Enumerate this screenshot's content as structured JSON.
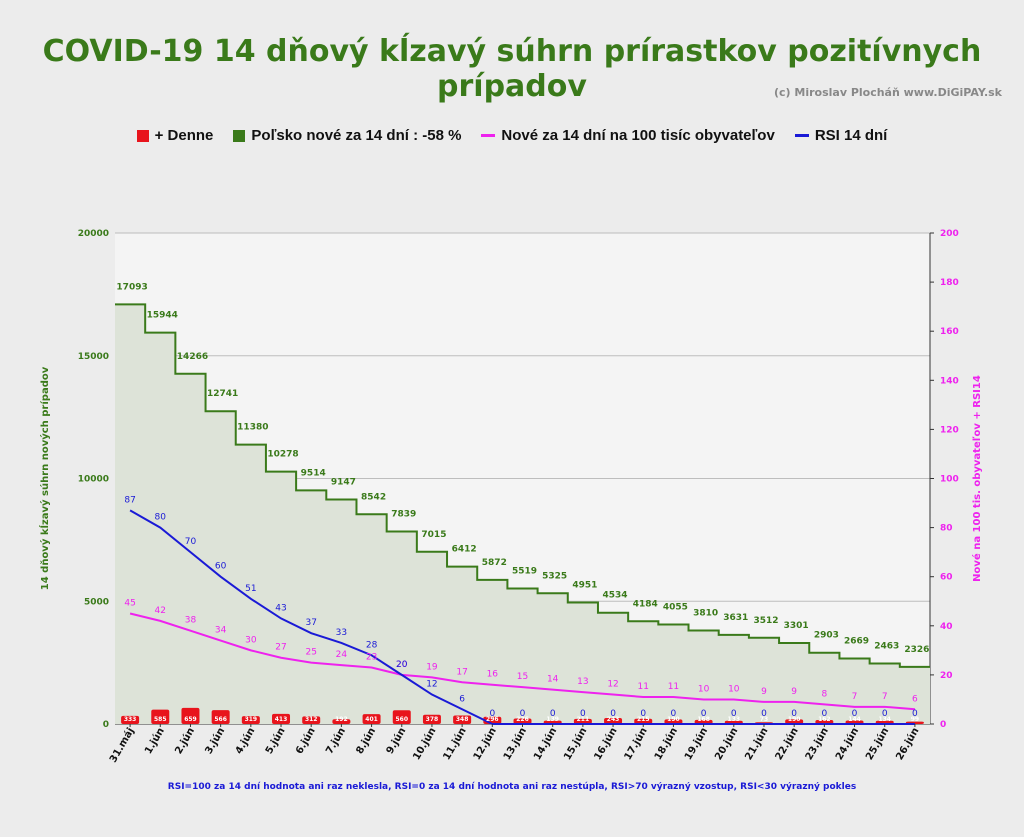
{
  "header": {
    "title": "COVID-19 14 dňový kĺzavý súhrn prírastkov pozitívnych prípadov",
    "credit": "(c) Miroslav Plocháň  www.DiGiPAY.sk"
  },
  "legend": [
    {
      "label": "+ Denne",
      "color": "#e8141c",
      "kind": "box"
    },
    {
      "label": "Poľsko nové za 14 dní : -58 %",
      "color": "#3a7a1a",
      "kind": "box"
    },
    {
      "label": "Nové za 14 dní na 100 tisíc obyvateľov",
      "color": "#ee22ee",
      "kind": "line"
    },
    {
      "label": "RSI 14 dní",
      "color": "#1a1ad6",
      "kind": "line"
    }
  ],
  "footnote": "RSI=100 za 14 dní hodnota ani raz neklesla, RSI=0 za 14 dní hodnota ani raz nestúpla, RSI>70 výrazný  vzostup, RSI<30 výrazný pokles",
  "chart_data": {
    "type": "bar",
    "categories": [
      "31.máj",
      "1.jún",
      "2.jún",
      "3.jún",
      "4.jún",
      "5.jún",
      "6.jún",
      "7.jún",
      "8.jún",
      "9.jún",
      "10.jún",
      "11.jún",
      "12.jún",
      "13.jún",
      "14.jún",
      "15.jún",
      "16.jún",
      "17.jún",
      "18.jún",
      "19.jún",
      "20.jún",
      "21.jún",
      "22.jún",
      "23.jún",
      "24.jún",
      "25.jún",
      "26.jún"
    ],
    "ylabel": "14 dňový kĺzavý  súhrn nových prípadov",
    "y2label": "Nové na 100 tis. obyvateľov + RSI14",
    "ylim": [
      0,
      20000
    ],
    "y2lim": [
      0,
      200
    ],
    "yticks": [
      "0",
      "5000",
      "10000",
      "15000",
      "20000"
    ],
    "y2ticks": [
      "0",
      "20",
      "40",
      "60",
      "80",
      "100",
      "120",
      "140",
      "160",
      "180",
      "200"
    ],
    "grid": true,
    "series": [
      {
        "name": "+ Denne",
        "axis": "left",
        "kind": "bar",
        "color": "#e8141c",
        "values": [
          333,
          585,
          659,
          566,
          319,
          413,
          312,
          192,
          401,
          560,
          378,
          348,
          296,
          226,
          139,
          211,
          243,
          215,
          190,
          168,
          133,
          73,
          190,
          162,
          144,
          134,
          99
        ]
      },
      {
        "name": "Poľsko nové za 14 dní : -58 %",
        "axis": "left",
        "kind": "step",
        "color": "#3a7a1a",
        "values": [
          17093,
          15944,
          14266,
          12741,
          11380,
          10278,
          9514,
          9147,
          8542,
          7839,
          7015,
          6412,
          5872,
          5519,
          5325,
          4951,
          4534,
          4184,
          4055,
          3810,
          3631,
          3512,
          3301,
          2903,
          2669,
          2463,
          2326
        ]
      },
      {
        "name": "Nové za 14 dní na 100 tisíc obyvateľov",
        "axis": "right",
        "kind": "line",
        "color": "#ee22ee",
        "values": [
          45,
          42,
          38,
          34,
          30,
          27,
          25,
          24,
          23,
          20,
          19,
          17,
          16,
          15,
          14,
          13,
          12,
          11,
          11,
          10,
          10,
          9,
          9,
          8,
          7,
          7,
          6
        ]
      },
      {
        "name": "RSI 14 dní",
        "axis": "right",
        "kind": "line",
        "color": "#1a1ad6",
        "values": [
          87,
          80,
          70,
          60,
          51,
          43,
          37,
          33,
          28,
          20,
          12,
          6,
          0,
          0,
          0,
          0,
          0,
          0,
          0,
          0,
          0,
          0,
          0,
          0,
          0,
          0,
          0
        ]
      }
    ]
  }
}
